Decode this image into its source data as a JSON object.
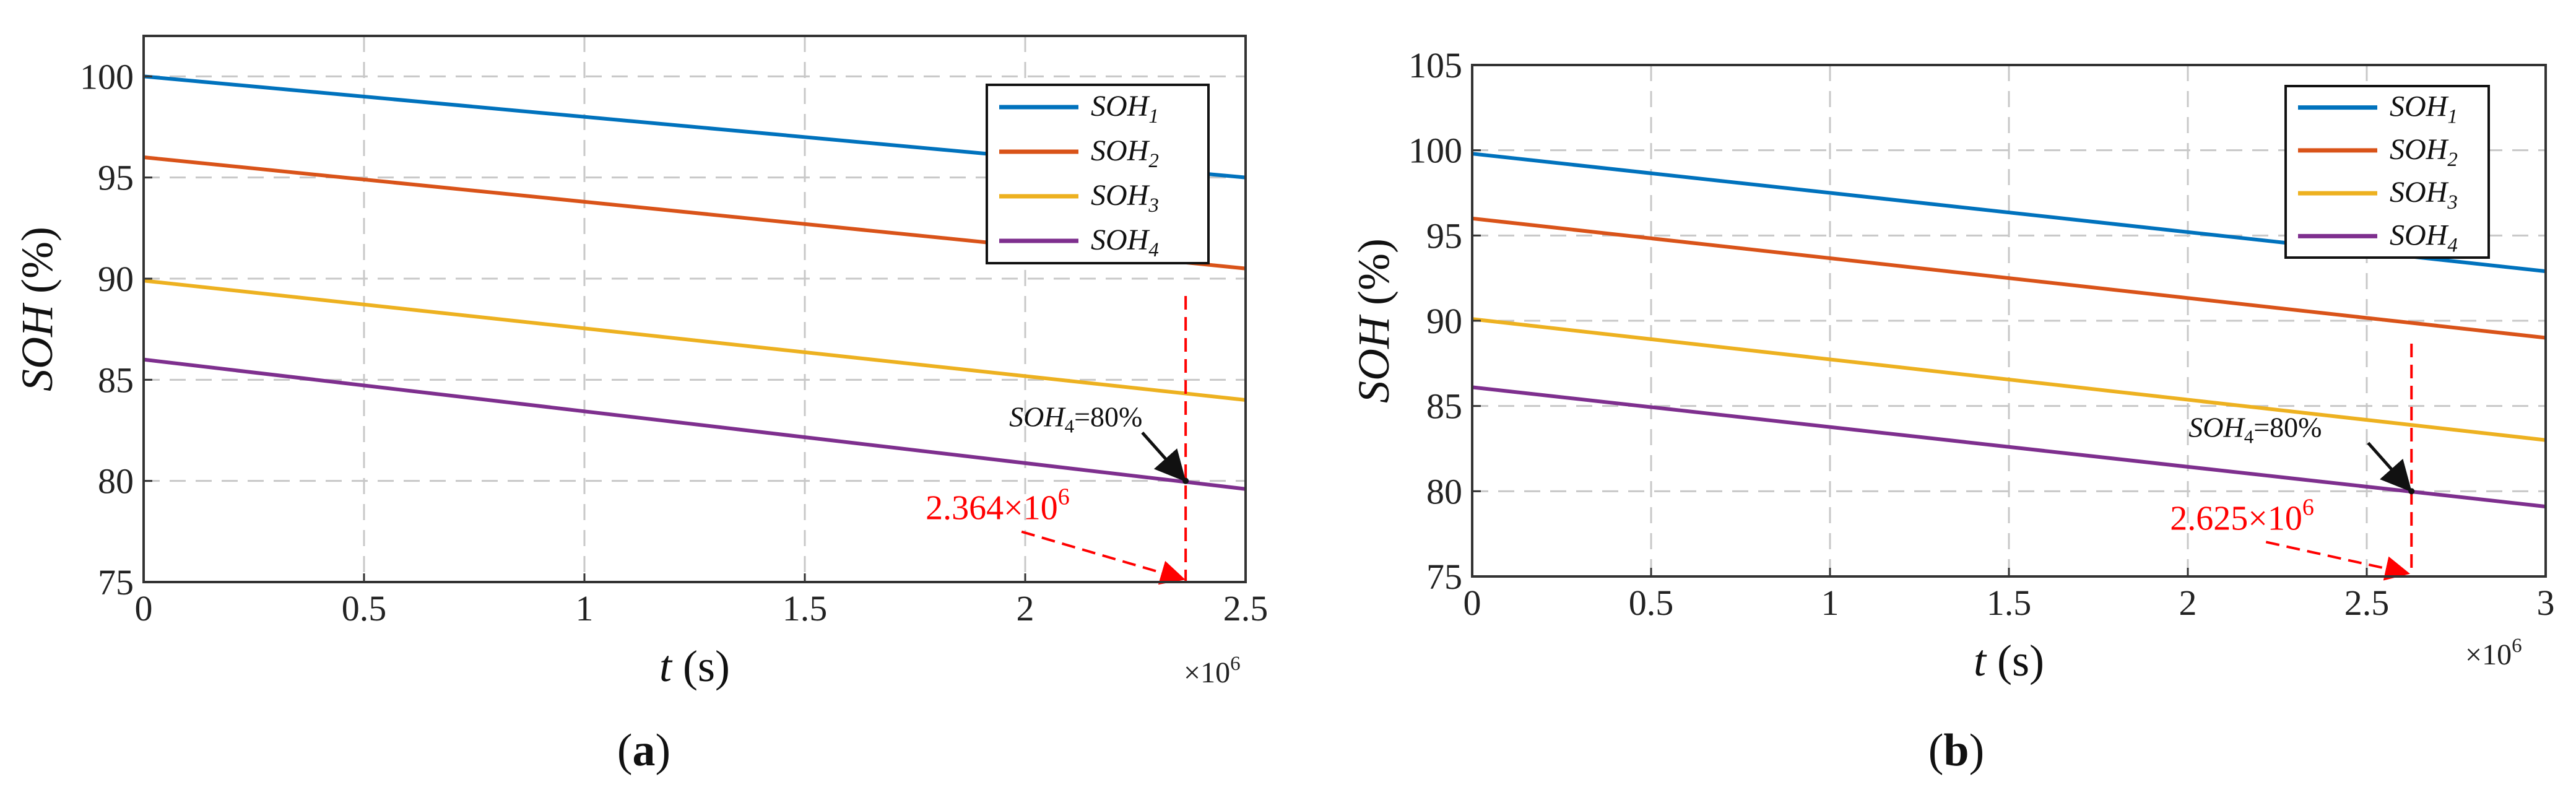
{
  "chart_data": [
    {
      "type": "line",
      "panel_label": "(a)",
      "xlabel": "t (s)",
      "ylabel": "SOH (%)",
      "x_multiplier": "×10^6",
      "xlim": [
        0,
        2.5
      ],
      "ylim": [
        75,
        102
      ],
      "xticks": [
        0,
        0.5,
        1,
        1.5,
        2,
        2.5
      ],
      "xtick_labels": [
        "0",
        "0.5",
        "1",
        "1.5",
        "2",
        "2.5"
      ],
      "yticks": [
        75,
        80,
        85,
        90,
        95,
        100
      ],
      "ytick_labels": [
        "75",
        "80",
        "85",
        "90",
        "95",
        "100"
      ],
      "grid": true,
      "legend_position": "top-right",
      "series": [
        {
          "name": "SOH1",
          "color": "#0072bd",
          "x": [
            0,
            2.5
          ],
          "y": [
            100.0,
            95.0
          ]
        },
        {
          "name": "SOH2",
          "color": "#d95319",
          "x": [
            0,
            2.5
          ],
          "y": [
            96.0,
            90.5
          ]
        },
        {
          "name": "SOH3",
          "color": "#edb120",
          "x": [
            0,
            2.5
          ],
          "y": [
            89.9,
            84.0
          ]
        },
        {
          "name": "SOH4",
          "color": "#7e2f8e",
          "x": [
            0,
            2.5
          ],
          "y": [
            86.0,
            79.6
          ]
        }
      ],
      "annotations": {
        "point_label": "SOH4=80%",
        "point": [
          2.364,
          80
        ],
        "time_label": "2.364×10^6",
        "time_value": 2.364
      }
    },
    {
      "type": "line",
      "panel_label": "(b)",
      "xlabel": "t (s)",
      "ylabel": "SOH (%)",
      "x_multiplier": "×10^6",
      "xlim": [
        0,
        3
      ],
      "ylim": [
        75,
        105
      ],
      "xticks": [
        0,
        0.5,
        1,
        1.5,
        2,
        2.5,
        3
      ],
      "xtick_labels": [
        "0",
        "0.5",
        "1",
        "1.5",
        "2",
        "2.5",
        "3"
      ],
      "yticks": [
        75,
        80,
        85,
        90,
        95,
        100,
        105
      ],
      "ytick_labels": [
        "75",
        "80",
        "85",
        "90",
        "95",
        "100",
        "105"
      ],
      "grid": true,
      "legend_position": "top-right",
      "series": [
        {
          "name": "SOH1",
          "color": "#0072bd",
          "x": [
            0,
            3
          ],
          "y": [
            99.8,
            92.9
          ]
        },
        {
          "name": "SOH2",
          "color": "#d95319",
          "x": [
            0,
            3
          ],
          "y": [
            96.0,
            89.0
          ]
        },
        {
          "name": "SOH3",
          "color": "#edb120",
          "x": [
            0,
            3
          ],
          "y": [
            90.1,
            83.0
          ]
        },
        {
          "name": "SOH4",
          "color": "#7e2f8e",
          "x": [
            0,
            3
          ],
          "y": [
            86.1,
            79.1
          ]
        }
      ],
      "annotations": {
        "point_label": "SOH4=80%",
        "point": [
          2.625,
          80
        ],
        "time_label": "2.625×10^6",
        "time_value": 2.625
      }
    }
  ]
}
